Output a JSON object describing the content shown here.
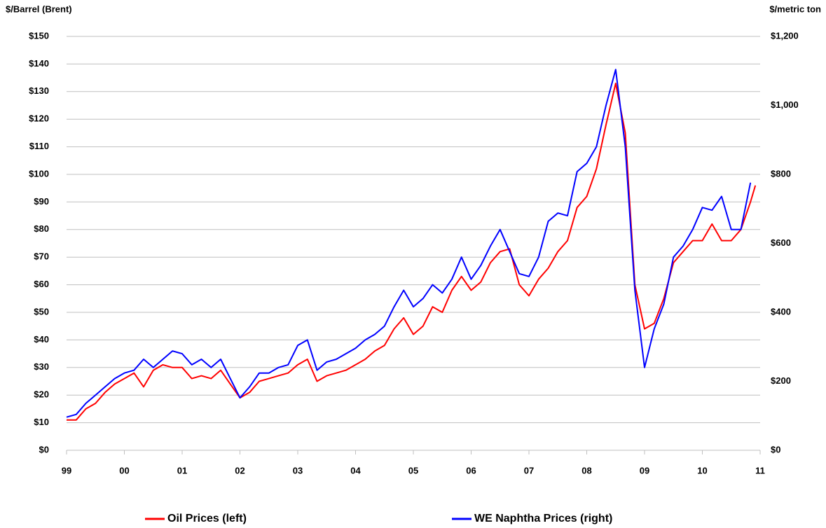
{
  "chart_data": {
    "type": "line",
    "y_label": "$/Barrel (Brent)",
    "y2_label": "$/metric ton",
    "x": [
      1999,
      1999.167,
      1999.333,
      1999.5,
      1999.667,
      1999.833,
      2000,
      2000.167,
      2000.333,
      2000.5,
      2000.667,
      2000.833,
      2001,
      2001.167,
      2001.333,
      2001.5,
      2001.667,
      2001.833,
      2002,
      2002.167,
      2002.333,
      2002.5,
      2002.667,
      2002.833,
      2003,
      2003.167,
      2003.333,
      2003.5,
      2003.667,
      2003.833,
      2004,
      2004.167,
      2004.333,
      2004.5,
      2004.667,
      2004.833,
      2005,
      2005.167,
      2005.333,
      2005.5,
      2005.667,
      2005.833,
      2006,
      2006.167,
      2006.333,
      2006.5,
      2006.667,
      2006.833,
      2007,
      2007.167,
      2007.333,
      2007.5,
      2007.667,
      2007.833,
      2008,
      2008.167,
      2008.333,
      2008.5,
      2008.667,
      2008.833,
      2009,
      2009.167,
      2009.333,
      2009.5,
      2009.667,
      2009.833,
      2010,
      2010.167,
      2010.333,
      2010.5,
      2010.667,
      2010.833,
      2010.917
    ],
    "series": [
      {
        "name": "Oil Prices (left)",
        "color": "#ff0000",
        "axis": "y",
        "values": [
          11,
          11,
          15,
          17,
          21,
          24,
          26,
          28,
          23,
          29,
          31,
          30,
          30,
          26,
          27,
          26,
          29,
          24,
          19,
          21,
          25,
          26,
          27,
          28,
          31,
          33,
          25,
          27,
          28,
          29,
          31,
          33,
          36,
          38,
          44,
          48,
          42,
          45,
          52,
          50,
          58,
          63,
          58,
          61,
          68,
          72,
          73,
          60,
          56,
          62,
          66,
          72,
          76,
          88,
          92,
          102,
          118,
          133,
          115,
          60,
          44,
          46,
          55,
          68,
          72,
          76,
          76,
          82,
          76,
          76,
          80,
          90,
          96
        ]
      },
      {
        "name": "WE Naphtha Prices (right)",
        "color": "#0000ff",
        "axis": "y2",
        "values": [
          96,
          104,
          136,
          160,
          184,
          208,
          224,
          232,
          264,
          240,
          264,
          288,
          280,
          248,
          264,
          240,
          264,
          208,
          152,
          184,
          224,
          224,
          240,
          248,
          304,
          320,
          232,
          256,
          264,
          280,
          296,
          320,
          336,
          360,
          416,
          464,
          416,
          440,
          480,
          456,
          496,
          560,
          496,
          536,
          592,
          640,
          576,
          512,
          504,
          560,
          664,
          688,
          680,
          808,
          832,
          880,
          1000,
          1104,
          880,
          464,
          240,
          352,
          424,
          560,
          592,
          640,
          704,
          696,
          736,
          640,
          640,
          776,
          null
        ]
      }
    ],
    "xlim": [
      1999,
      2011
    ],
    "xticks": [
      {
        "value": 1999,
        "label": "99"
      },
      {
        "value": 2000,
        "label": "00"
      },
      {
        "value": 2001,
        "label": "01"
      },
      {
        "value": 2002,
        "label": "02"
      },
      {
        "value": 2003,
        "label": "03"
      },
      {
        "value": 2004,
        "label": "04"
      },
      {
        "value": 2005,
        "label": "05"
      },
      {
        "value": 2006,
        "label": "06"
      },
      {
        "value": 2007,
        "label": "07"
      },
      {
        "value": 2008,
        "label": "08"
      },
      {
        "value": 2009,
        "label": "09"
      },
      {
        "value": 2010,
        "label": "10"
      },
      {
        "value": 2011,
        "label": "11"
      }
    ],
    "ylim": [
      0,
      150
    ],
    "yticks": [
      {
        "value": 0,
        "label": "$0"
      },
      {
        "value": 10,
        "label": "$10"
      },
      {
        "value": 20,
        "label": "$20"
      },
      {
        "value": 30,
        "label": "$30"
      },
      {
        "value": 40,
        "label": "$40"
      },
      {
        "value": 50,
        "label": "$50"
      },
      {
        "value": 60,
        "label": "$60"
      },
      {
        "value": 70,
        "label": "$70"
      },
      {
        "value": 80,
        "label": "$80"
      },
      {
        "value": 90,
        "label": "$90"
      },
      {
        "value": 100,
        "label": "$100"
      },
      {
        "value": 110,
        "label": "$110"
      },
      {
        "value": 120,
        "label": "$120"
      },
      {
        "value": 130,
        "label": "$130"
      },
      {
        "value": 140,
        "label": "$140"
      },
      {
        "value": 150,
        "label": "$150"
      }
    ],
    "y2lim": [
      0,
      1200
    ],
    "y2ticks": [
      {
        "value": 0,
        "label": "$0"
      },
      {
        "value": 200,
        "label": "$200"
      },
      {
        "value": 400,
        "label": "$400"
      },
      {
        "value": 600,
        "label": "$600"
      },
      {
        "value": 800,
        "label": "$800"
      },
      {
        "value": 1000,
        "label": "$1,000"
      },
      {
        "value": 1200,
        "label": "$1,200"
      }
    ],
    "grid": true,
    "legend": "bottom"
  }
}
